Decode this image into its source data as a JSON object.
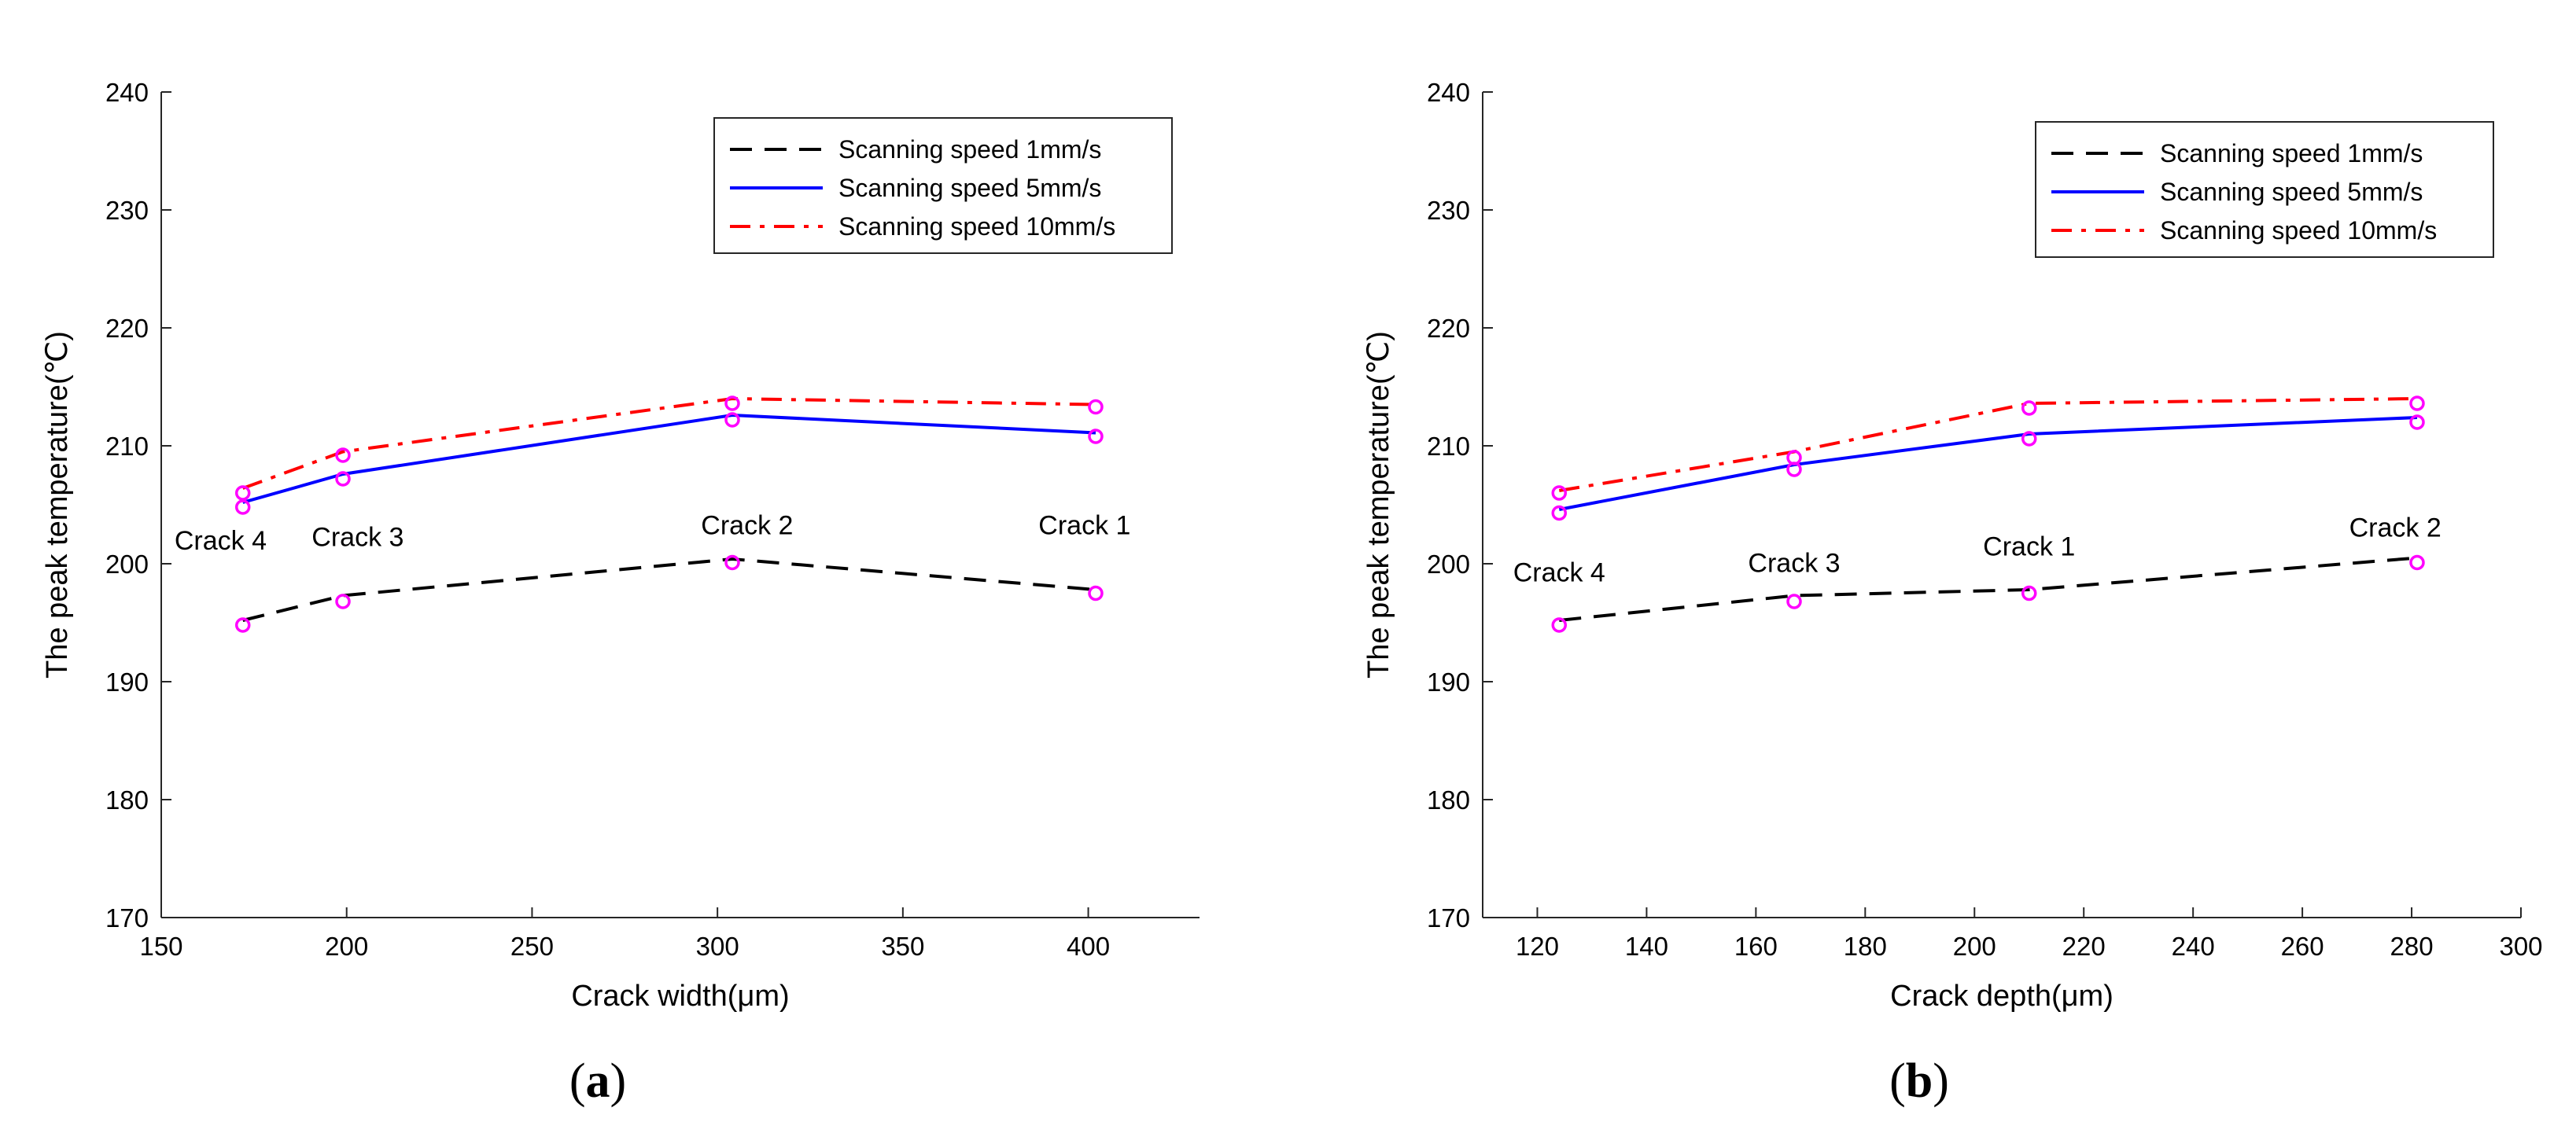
{
  "chart_data": [
    {
      "type": "line",
      "panel_label": "a",
      "xlabel": "Crack width(μm)",
      "ylabel": "The peak temperature(℃)",
      "xlim": [
        150,
        430
      ],
      "ylim": [
        170,
        240
      ],
      "xticks": [
        150,
        200,
        250,
        300,
        350,
        400
      ],
      "yticks": [
        170,
        180,
        190,
        200,
        210,
        220,
        230,
        240
      ],
      "legend_position": "top-right",
      "x": [
        172,
        199,
        304,
        402
      ],
      "series": [
        {
          "name": "Scanning speed 1mm/s",
          "color": "#000000",
          "dash": "dashed",
          "values": [
            195.2,
            197.3,
            200.4,
            197.8
          ]
        },
        {
          "name": "Scanning speed 5mm/s",
          "color": "#0000ff",
          "dash": "solid",
          "values": [
            205.2,
            207.6,
            212.6,
            211.1
          ]
        },
        {
          "name": "Scanning speed 10mm/s",
          "color": "#ff0000",
          "dash": "dashdot",
          "values": [
            206.4,
            209.5,
            214.0,
            213.5
          ]
        }
      ],
      "markers": {
        "color": "#ff00ff",
        "x": [
          172,
          172,
          172,
          199,
          199,
          199,
          304,
          304,
          304,
          402,
          402,
          402
        ],
        "y": [
          194.8,
          204.8,
          206.0,
          196.8,
          207.2,
          209.2,
          200.1,
          212.2,
          213.6,
          197.5,
          210.8,
          213.3
        ]
      },
      "annotations": [
        {
          "text": "Crack 4",
          "x": 166,
          "y": 201.2
        },
        {
          "text": "Crack 3",
          "x": 203,
          "y": 201.5
        },
        {
          "text": "Crack 2",
          "x": 308,
          "y": 202.5
        },
        {
          "text": "Crack 1",
          "x": 399,
          "y": 202.5
        }
      ]
    },
    {
      "type": "line",
      "panel_label": "b",
      "xlabel": "Crack depth(μm)",
      "ylabel": "The peak temperature(℃)",
      "xlim": [
        110,
        300
      ],
      "ylim": [
        170,
        240
      ],
      "xticks": [
        120,
        140,
        160,
        180,
        200,
        220,
        240,
        260,
        280,
        300
      ],
      "yticks": [
        170,
        180,
        190,
        200,
        210,
        220,
        230,
        240
      ],
      "legend_position": "top-right",
      "x": [
        124,
        167,
        210,
        281
      ],
      "series": [
        {
          "name": "Scanning speed 1mm/s",
          "color": "#000000",
          "dash": "dashed",
          "values": [
            195.2,
            197.3,
            197.8,
            200.5
          ]
        },
        {
          "name": "Scanning speed 5mm/s",
          "color": "#0000ff",
          "dash": "solid",
          "values": [
            204.6,
            208.4,
            211.0,
            212.4
          ]
        },
        {
          "name": "Scanning speed 10mm/s",
          "color": "#ff0000",
          "dash": "dashdot",
          "values": [
            206.2,
            209.5,
            213.6,
            214.0
          ]
        }
      ],
      "markers": {
        "color": "#ff00ff",
        "x": [
          124,
          124,
          124,
          167,
          167,
          167,
          210,
          210,
          210,
          281,
          281,
          281
        ],
        "y": [
          194.8,
          204.3,
          206.0,
          196.8,
          208.0,
          209.0,
          197.5,
          210.6,
          213.2,
          200.1,
          212.0,
          213.6
        ]
      },
      "annotations": [
        {
          "text": "Crack 4",
          "x": 124,
          "y": 198.5
        },
        {
          "text": "Crack 3",
          "x": 167,
          "y": 199.3
        },
        {
          "text": "Crack 1",
          "x": 210,
          "y": 200.7
        },
        {
          "text": "Crack 2",
          "x": 277,
          "y": 202.3
        }
      ]
    }
  ]
}
